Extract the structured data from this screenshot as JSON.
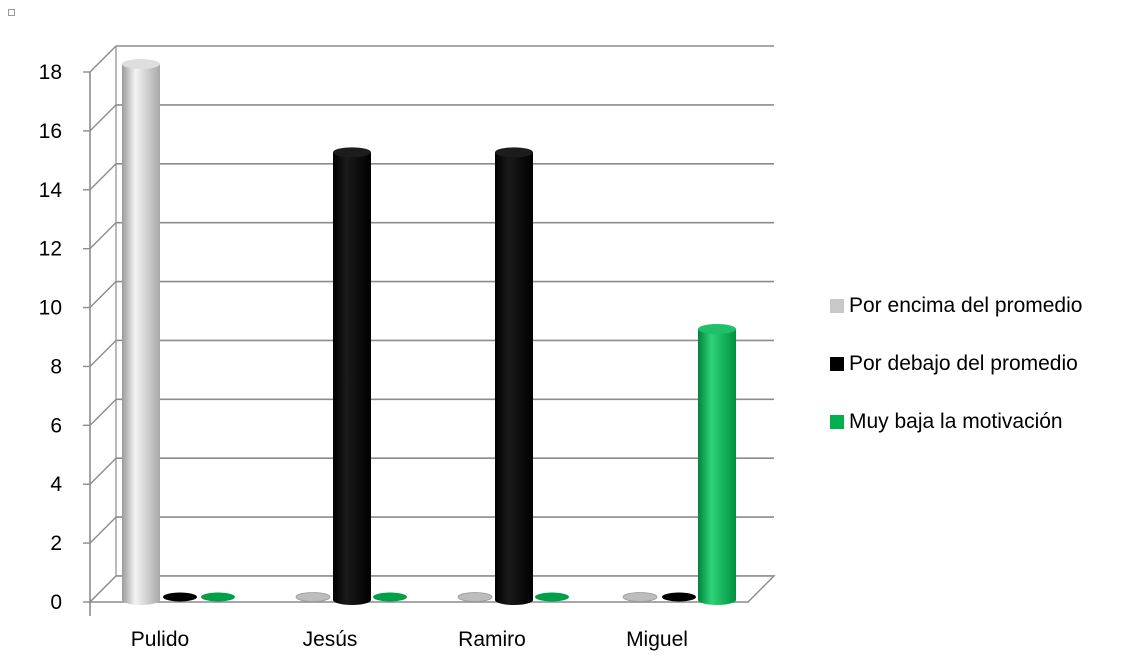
{
  "chart_data": {
    "type": "bar",
    "style": "3d-cylinder",
    "categories": [
      "Pulido",
      "Jesús",
      "Ramiro",
      "Miguel"
    ],
    "series": [
      {
        "name": "Por encima del promedio",
        "color": "#c8c8c8",
        "values": [
          18,
          0,
          0,
          0
        ]
      },
      {
        "name": "Por debajo del promedio",
        "color": "#000000",
        "values": [
          0,
          15,
          15,
          0
        ]
      },
      {
        "name": "Muy baja la motivación",
        "color": "#00b050",
        "values": [
          0,
          0,
          0,
          9
        ]
      }
    ],
    "yticks": [
      "0",
      "2",
      "4",
      "6",
      "8",
      "10",
      "12",
      "14",
      "16",
      "18"
    ],
    "ylim": [
      0,
      18
    ],
    "grid": true,
    "legend_position": "right"
  }
}
